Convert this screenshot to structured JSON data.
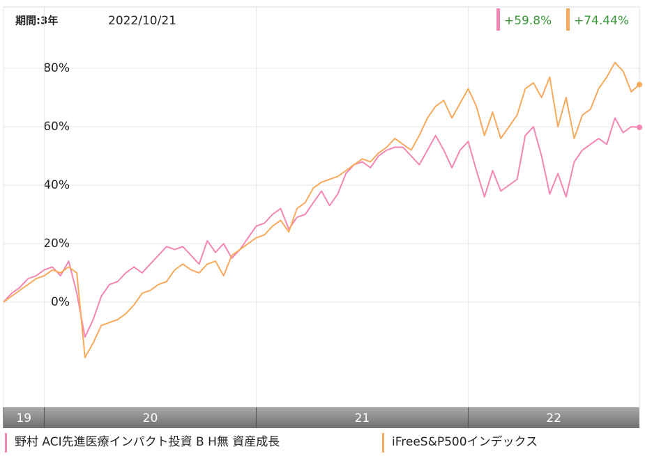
{
  "chart_data": {
    "type": "line",
    "period_label": "期間:3年",
    "date_label": "2022/10/21",
    "x": [
      0,
      1,
      2,
      3,
      4,
      5,
      6,
      7,
      8,
      9,
      10,
      11,
      12,
      13,
      14,
      15,
      16,
      17,
      18,
      19,
      20,
      21,
      22,
      23,
      24,
      25,
      26,
      27,
      28,
      29,
      30,
      31,
      32,
      33,
      34,
      35,
      36,
      37,
      38,
      39,
      40,
      41,
      42,
      43,
      44,
      45,
      46,
      47,
      48,
      49,
      50,
      51,
      52,
      53,
      54,
      55,
      56,
      57,
      58,
      59,
      60,
      61,
      62,
      63,
      64,
      65,
      66,
      67,
      68,
      69,
      70,
      71,
      72,
      73,
      74,
      75,
      76,
      77,
      78
    ],
    "xlim": [
      0,
      78
    ],
    "xticks": [
      {
        "value": 0,
        "label": "19"
      },
      {
        "value": 5,
        "label": "20"
      },
      {
        "value": 31,
        "label": "21"
      },
      {
        "value": 57,
        "label": "22"
      }
    ],
    "ylim": [
      -36,
      101
    ],
    "yticks": [
      {
        "value": 0,
        "label": "0%"
      },
      {
        "value": 20,
        "label": "20%"
      },
      {
        "value": 40,
        "label": "40%"
      },
      {
        "value": 60,
        "label": "60%"
      },
      {
        "value": 80,
        "label": "80%"
      }
    ],
    "grid": true,
    "series": [
      {
        "name": "野村 ACI先進医療インパクト投資 B H無 資産成長",
        "color": "#f386b4",
        "change_label": "+59.8%",
        "values": [
          0,
          3,
          5,
          8,
          9,
          11,
          12,
          9,
          14,
          3,
          -12,
          -6,
          2,
          6,
          7,
          10,
          12,
          10,
          13,
          16,
          19,
          18,
          19,
          16,
          13,
          21,
          17,
          20,
          15,
          18,
          22,
          26,
          27,
          30,
          32,
          25,
          29,
          30,
          34,
          38,
          33,
          37,
          44,
          47,
          48,
          46,
          50,
          52,
          53,
          53,
          50,
          47,
          52,
          57,
          52,
          46,
          52,
          55,
          45,
          36,
          45,
          38,
          40,
          42,
          57,
          60,
          50,
          37,
          44,
          36,
          48,
          52,
          54,
          56,
          54,
          63,
          58,
          60,
          59.8
        ]
      },
      {
        "name": "iFreeS&P500インデックス",
        "color": "#f7a95c",
        "change_label": "+74.44%",
        "values": [
          0,
          2,
          4,
          6,
          8,
          9,
          11,
          10,
          12,
          10,
          -19,
          -14,
          -8,
          -7,
          -6,
          -4,
          -1,
          3,
          4,
          6,
          7,
          11,
          13,
          11,
          10,
          13,
          14,
          9,
          16,
          18,
          20,
          22,
          23,
          26,
          28,
          24,
          32,
          34,
          39,
          41,
          42,
          43,
          45,
          47,
          49,
          48,
          51,
          53,
          56,
          54,
          52,
          57,
          63,
          67,
          69,
          63,
          68,
          73,
          67,
          57,
          65,
          56,
          60,
          64,
          73,
          75,
          70,
          77,
          60,
          70,
          56,
          64,
          66,
          73,
          77,
          82,
          79,
          72,
          74.44
        ]
      }
    ]
  }
}
